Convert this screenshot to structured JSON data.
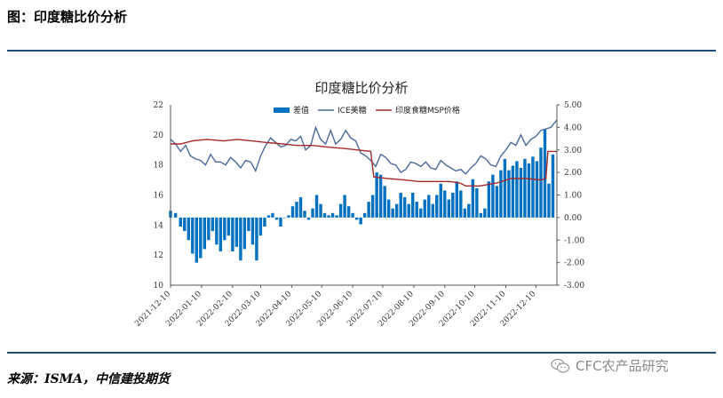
{
  "header": {
    "figure_title": "图：印度糖比价分析"
  },
  "footer": {
    "source": "来源：ISMA，中信建投期货",
    "watermark": "CFC农产品研究"
  },
  "chart_data": {
    "type": "combo-bar-line",
    "title": "印度糖比价分析",
    "left_axis": {
      "ylim": [
        10,
        22
      ],
      "ticks": [
        "10",
        "12",
        "14",
        "16",
        "18",
        "20",
        "22"
      ]
    },
    "right_axis": {
      "ylim": [
        -3,
        5
      ],
      "ticks": [
        "-3.00",
        "-2.00",
        "-1.00",
        "0.00",
        "1.00",
        "2.00",
        "3.00",
        "4.00",
        "5.00"
      ]
    },
    "x_ticks": [
      "2021-12-10",
      "2022-01-10",
      "2022-02-10",
      "2022-03-10",
      "2022-04-10",
      "2022-05-10",
      "2022-06-10",
      "2022-07-10",
      "2022-08-10",
      "2022-09-10",
      "2022-10-10",
      "2022-11-10",
      "2022-12-10"
    ],
    "x_start": "2021-12-10",
    "x_end": "2022-12-31",
    "legend": [
      "差值",
      "ICE美糖",
      "印度食糖MSP价格"
    ],
    "colors": {
      "diff": "#0070c0",
      "ice": "#4a6a9c",
      "msp": "#a52a2a"
    },
    "series": [
      {
        "name": "差值",
        "axis": "right",
        "type": "bar",
        "points": [
          [
            "2021-12-10",
            0.3
          ],
          [
            "2021-12-15",
            0.2
          ],
          [
            "2021-12-20",
            -0.4
          ],
          [
            "2021-12-24",
            -0.6
          ],
          [
            "2021-12-28",
            -1.0
          ],
          [
            "2022-01-01",
            -1.6
          ],
          [
            "2022-01-05",
            -2.0
          ],
          [
            "2022-01-09",
            -1.8
          ],
          [
            "2022-01-13",
            -1.4
          ],
          [
            "2022-01-17",
            -1.0
          ],
          [
            "2022-01-21",
            -0.6
          ],
          [
            "2022-01-25",
            -1.2
          ],
          [
            "2022-01-29",
            -1.5
          ],
          [
            "2022-02-02",
            -1.0
          ],
          [
            "2022-02-06",
            -0.8
          ],
          [
            "2022-02-10",
            -1.5
          ],
          [
            "2022-02-14",
            -1.3
          ],
          [
            "2022-02-18",
            -1.9
          ],
          [
            "2022-02-22",
            -1.4
          ],
          [
            "2022-02-26",
            -0.6
          ],
          [
            "2022-03-02",
            -1.2
          ],
          [
            "2022-03-06",
            -1.9
          ],
          [
            "2022-03-10",
            -0.8
          ],
          [
            "2022-03-14",
            -0.4
          ],
          [
            "2022-03-18",
            0.1
          ],
          [
            "2022-03-22",
            0.2
          ],
          [
            "2022-03-26",
            -0.1
          ],
          [
            "2022-03-30",
            -0.4
          ],
          [
            "2022-04-03",
            0.0
          ],
          [
            "2022-04-07",
            0.1
          ],
          [
            "2022-04-11",
            0.5
          ],
          [
            "2022-04-15",
            0.7
          ],
          [
            "2022-04-19",
            0.9
          ],
          [
            "2022-04-23",
            0.3
          ],
          [
            "2022-04-27",
            -0.1
          ],
          [
            "2022-05-01",
            0.4
          ],
          [
            "2022-05-05",
            1.0
          ],
          [
            "2022-05-09",
            0.6
          ],
          [
            "2022-05-13",
            0.2
          ],
          [
            "2022-05-17",
            0.1
          ],
          [
            "2022-05-21",
            0.2
          ],
          [
            "2022-05-25",
            0.1
          ],
          [
            "2022-05-29",
            0.6
          ],
          [
            "2022-06-02",
            1.0
          ],
          [
            "2022-06-06",
            0.5
          ],
          [
            "2022-06-10",
            0.2
          ],
          [
            "2022-06-14",
            -0.1
          ],
          [
            "2022-06-18",
            -0.3
          ],
          [
            "2022-06-22",
            0.2
          ],
          [
            "2022-06-26",
            0.7
          ],
          [
            "2022-06-30",
            1.0
          ],
          [
            "2022-07-04",
            2.0
          ],
          [
            "2022-07-08",
            1.9
          ],
          [
            "2022-07-12",
            1.4
          ],
          [
            "2022-07-16",
            0.8
          ],
          [
            "2022-07-20",
            0.4
          ],
          [
            "2022-07-24",
            0.6
          ],
          [
            "2022-07-28",
            1.1
          ],
          [
            "2022-08-01",
            0.9
          ],
          [
            "2022-08-05",
            0.6
          ],
          [
            "2022-08-09",
            1.1
          ],
          [
            "2022-08-13",
            0.7
          ],
          [
            "2022-08-17",
            0.4
          ],
          [
            "2022-08-21",
            0.8
          ],
          [
            "2022-08-25",
            1.0
          ],
          [
            "2022-08-29",
            0.6
          ],
          [
            "2022-09-02",
            1.0
          ],
          [
            "2022-09-06",
            1.5
          ],
          [
            "2022-09-10",
            1.2
          ],
          [
            "2022-09-14",
            0.8
          ],
          [
            "2022-09-18",
            1.1
          ],
          [
            "2022-09-22",
            1.6
          ],
          [
            "2022-09-26",
            1.2
          ],
          [
            "2022-09-30",
            0.4
          ],
          [
            "2022-10-04",
            0.6
          ],
          [
            "2022-10-08",
            1.7
          ],
          [
            "2022-10-12",
            1.3
          ],
          [
            "2022-10-16",
            0.2
          ],
          [
            "2022-10-20",
            0.4
          ],
          [
            "2022-10-24",
            1.6
          ],
          [
            "2022-10-28",
            1.9
          ],
          [
            "2022-11-01",
            1.4
          ],
          [
            "2022-11-05",
            2.1
          ],
          [
            "2022-11-09",
            2.6
          ],
          [
            "2022-11-13",
            2.1
          ],
          [
            "2022-11-17",
            2.3
          ],
          [
            "2022-11-21",
            2.5
          ],
          [
            "2022-11-25",
            2.2
          ],
          [
            "2022-11-29",
            2.6
          ],
          [
            "2022-12-03",
            2.4
          ],
          [
            "2022-12-07",
            2.7
          ],
          [
            "2022-12-11",
            2.5
          ],
          [
            "2022-12-15",
            3.1
          ],
          [
            "2022-12-19",
            3.9
          ],
          [
            "2022-12-23",
            1.5
          ],
          [
            "2022-12-27",
            2.8
          ]
        ]
      },
      {
        "name": "ICE美糖",
        "axis": "left",
        "type": "line",
        "points": [
          [
            "2021-12-10",
            19.7
          ],
          [
            "2021-12-15",
            19.4
          ],
          [
            "2021-12-20",
            18.9
          ],
          [
            "2021-12-25",
            19.3
          ],
          [
            "2021-12-30",
            18.6
          ],
          [
            "2022-01-04",
            18.4
          ],
          [
            "2022-01-09",
            18.3
          ],
          [
            "2022-01-14",
            18.0
          ],
          [
            "2022-01-19",
            18.7
          ],
          [
            "2022-01-24",
            18.2
          ],
          [
            "2022-01-29",
            18.2
          ],
          [
            "2022-02-03",
            18.0
          ],
          [
            "2022-02-08",
            18.5
          ],
          [
            "2022-02-13",
            18.2
          ],
          [
            "2022-02-18",
            17.8
          ],
          [
            "2022-02-23",
            18.3
          ],
          [
            "2022-02-28",
            18.2
          ],
          [
            "2022-03-05",
            17.6
          ],
          [
            "2022-03-10",
            18.6
          ],
          [
            "2022-03-15",
            19.3
          ],
          [
            "2022-03-20",
            19.8
          ],
          [
            "2022-03-25",
            19.5
          ],
          [
            "2022-03-30",
            19.2
          ],
          [
            "2022-04-04",
            19.3
          ],
          [
            "2022-04-09",
            19.7
          ],
          [
            "2022-04-14",
            19.6
          ],
          [
            "2022-04-19",
            19.9
          ],
          [
            "2022-04-24",
            19.0
          ],
          [
            "2022-04-29",
            19.3
          ],
          [
            "2022-05-04",
            20.5
          ],
          [
            "2022-05-09",
            19.7
          ],
          [
            "2022-05-14",
            19.4
          ],
          [
            "2022-05-19",
            20.3
          ],
          [
            "2022-05-24",
            19.4
          ],
          [
            "2022-05-29",
            19.7
          ],
          [
            "2022-06-03",
            20.3
          ],
          [
            "2022-06-08",
            19.8
          ],
          [
            "2022-06-13",
            19.6
          ],
          [
            "2022-06-18",
            18.8
          ],
          [
            "2022-06-23",
            18.6
          ],
          [
            "2022-06-28",
            18.3
          ],
          [
            "2022-07-03",
            17.9
          ],
          [
            "2022-07-08",
            18.7
          ],
          [
            "2022-07-13",
            18.5
          ],
          [
            "2022-07-18",
            18.1
          ],
          [
            "2022-07-23",
            18.0
          ],
          [
            "2022-07-28",
            17.5
          ],
          [
            "2022-08-02",
            17.7
          ],
          [
            "2022-08-07",
            18.2
          ],
          [
            "2022-08-12",
            18.1
          ],
          [
            "2022-08-17",
            17.9
          ],
          [
            "2022-08-22",
            18.2
          ],
          [
            "2022-08-27",
            17.8
          ],
          [
            "2022-09-01",
            17.7
          ],
          [
            "2022-09-06",
            18.3
          ],
          [
            "2022-09-11",
            18.0
          ],
          [
            "2022-09-16",
            17.8
          ],
          [
            "2022-09-21",
            17.6
          ],
          [
            "2022-09-26",
            17.7
          ],
          [
            "2022-10-01",
            17.4
          ],
          [
            "2022-10-06",
            17.8
          ],
          [
            "2022-10-11",
            18.1
          ],
          [
            "2022-10-16",
            18.6
          ],
          [
            "2022-10-21",
            18.4
          ],
          [
            "2022-10-26",
            18.0
          ],
          [
            "2022-10-31",
            17.9
          ],
          [
            "2022-11-05",
            18.6
          ],
          [
            "2022-11-10",
            19.0
          ],
          [
            "2022-11-15",
            19.5
          ],
          [
            "2022-11-20",
            19.3
          ],
          [
            "2022-11-25",
            20.0
          ],
          [
            "2022-11-30",
            19.3
          ],
          [
            "2022-12-05",
            19.7
          ],
          [
            "2022-12-10",
            19.9
          ],
          [
            "2022-12-15",
            20.3
          ],
          [
            "2022-12-20",
            20.4
          ],
          [
            "2022-12-25",
            20.5
          ],
          [
            "2022-12-31",
            21.0
          ]
        ]
      },
      {
        "name": "印度食糖MSP价格",
        "axis": "left",
        "type": "line",
        "points": [
          [
            "2021-12-10",
            19.4
          ],
          [
            "2021-12-20",
            19.4
          ],
          [
            "2022-01-01",
            19.6
          ],
          [
            "2022-01-15",
            19.7
          ],
          [
            "2022-02-01",
            19.6
          ],
          [
            "2022-02-15",
            19.7
          ],
          [
            "2022-03-01",
            19.6
          ],
          [
            "2022-03-15",
            19.5
          ],
          [
            "2022-04-01",
            19.4
          ],
          [
            "2022-04-15",
            19.3
          ],
          [
            "2022-05-01",
            19.3
          ],
          [
            "2022-05-15",
            19.2
          ],
          [
            "2022-06-01",
            19.1
          ],
          [
            "2022-06-15",
            19.0
          ],
          [
            "2022-06-28",
            18.9
          ],
          [
            "2022-07-01",
            17.2
          ],
          [
            "2022-07-15",
            17.1
          ],
          [
            "2022-08-01",
            17.0
          ],
          [
            "2022-08-15",
            16.9
          ],
          [
            "2022-09-01",
            16.9
          ],
          [
            "2022-09-15",
            16.9
          ],
          [
            "2022-09-25",
            16.8
          ],
          [
            "2022-10-01",
            16.6
          ],
          [
            "2022-10-15",
            16.6
          ],
          [
            "2022-11-01",
            16.8
          ],
          [
            "2022-11-15",
            17.1
          ],
          [
            "2022-12-01",
            17.1
          ],
          [
            "2022-12-15",
            17.0
          ],
          [
            "2022-12-20",
            17.1
          ],
          [
            "2022-12-22",
            18.9
          ],
          [
            "2022-12-31",
            18.9
          ]
        ]
      }
    ]
  }
}
